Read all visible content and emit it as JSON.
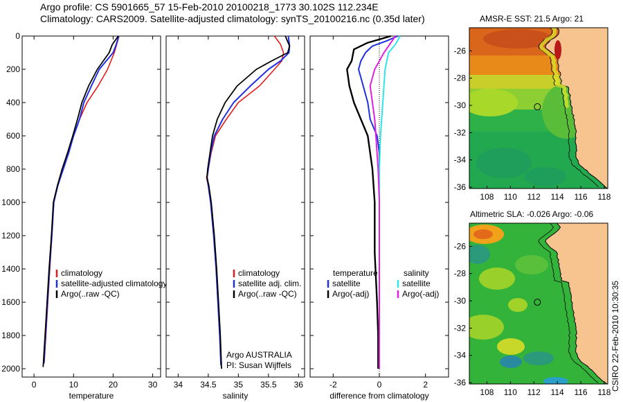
{
  "header": {
    "line1": "Argo profile: CS 5901665_57 15-Feb-2010 20100218_1773 30.102S 112.234E",
    "line2": "Climatology: CARS2009. Satellite-adjusted climatology: synTS_20100216.nc (0.35d later)"
  },
  "side_text": "CSIRO 22-Feb-2010 10:30:35",
  "colors": {
    "climatology": "#e41a1c",
    "satellite": "#1f2fe0",
    "argo": "#000000",
    "sal_satellite": "#2ee6e6",
    "sal_argo": "#e01fe0",
    "land": "#f7c48f"
  },
  "chart_data": [
    {
      "type": "line",
      "xlabel": "temperature",
      "ylabel": "",
      "xlim": [
        -3,
        32
      ],
      "ylim": [
        2050,
        0
      ],
      "xticks": [
        "0",
        "10",
        "20",
        "30"
      ],
      "yticks": [
        "0",
        "200",
        "400",
        "600",
        "800",
        "1000",
        "1200",
        "1400",
        "1600",
        "1800",
        "2000"
      ],
      "legend": [
        "climatology",
        "satellite-adjusted climatology",
        "Argo(..raw -QC)"
      ],
      "series": [
        {
          "name": "climatology",
          "points": [
            [
              21.5,
              0
            ],
            [
              20.9,
              50
            ],
            [
              20.3,
              100
            ],
            [
              18.6,
              200
            ],
            [
              16.2,
              300
            ],
            [
              13.4,
              400
            ],
            [
              11.5,
              500
            ],
            [
              10.0,
              600
            ],
            [
              8.6,
              700
            ],
            [
              7.3,
              800
            ],
            [
              6.0,
              900
            ],
            [
              5.0,
              1000
            ],
            [
              4.5,
              1200
            ],
            [
              4.0,
              1400
            ],
            [
              3.5,
              1600
            ],
            [
              3.0,
              1800
            ],
            [
              2.6,
              1960
            ]
          ]
        },
        {
          "name": "satellite-adjusted climatology",
          "points": [
            [
              21.4,
              0
            ],
            [
              20.8,
              50
            ],
            [
              20.0,
              100
            ],
            [
              16.5,
              200
            ],
            [
              14.5,
              300
            ],
            [
              12.6,
              400
            ],
            [
              11.5,
              500
            ],
            [
              10.0,
              600
            ],
            [
              8.8,
              700
            ],
            [
              7.4,
              800
            ],
            [
              6.0,
              900
            ],
            [
              5.0,
              1000
            ],
            [
              4.5,
              1200
            ],
            [
              3.9,
              1400
            ],
            [
              3.4,
              1600
            ],
            [
              2.9,
              1800
            ],
            [
              2.5,
              1970
            ]
          ]
        },
        {
          "name": "Argo(..raw -QC)",
          "points": [
            [
              21.3,
              0
            ],
            [
              19.8,
              50
            ],
            [
              19.0,
              100
            ],
            [
              16.0,
              200
            ],
            [
              13.8,
              300
            ],
            [
              12.1,
              400
            ],
            [
              11.0,
              500
            ],
            [
              9.8,
              600
            ],
            [
              8.5,
              700
            ],
            [
              7.1,
              800
            ],
            [
              5.9,
              900
            ],
            [
              4.9,
              1000
            ],
            [
              4.4,
              1200
            ],
            [
              3.8,
              1400
            ],
            [
              3.3,
              1600
            ],
            [
              2.8,
              1800
            ],
            [
              2.3,
              1990
            ]
          ]
        }
      ]
    },
    {
      "type": "line",
      "xlabel": "salinity",
      "xlim": [
        33.8,
        36.1
      ],
      "ylim": [
        2050,
        0
      ],
      "xticks": [
        "34",
        "34.5",
        "35",
        "35.5",
        "36"
      ],
      "legend": [
        "climatology",
        "satellite adj. clim.",
        "Argo(..raw -QC)"
      ],
      "annotation": [
        "Argo AUSTRALIA",
        "PI: Susan Wijffels"
      ],
      "series": [
        {
          "name": "climatology",
          "points": [
            [
              35.6,
              0
            ],
            [
              35.7,
              50
            ],
            [
              35.75,
              100
            ],
            [
              35.72,
              150
            ],
            [
              35.6,
              200
            ],
            [
              35.35,
              300
            ],
            [
              35.0,
              400
            ],
            [
              34.8,
              500
            ],
            [
              34.62,
              600
            ],
            [
              34.55,
              700
            ],
            [
              34.5,
              800
            ],
            [
              34.47,
              850
            ],
            [
              34.5,
              900
            ],
            [
              34.54,
              1000
            ],
            [
              34.59,
              1200
            ],
            [
              34.63,
              1400
            ],
            [
              34.66,
              1600
            ],
            [
              34.69,
              1800
            ],
            [
              34.72,
              1970
            ]
          ]
        },
        {
          "name": "satellite adj. clim.",
          "points": [
            [
              35.83,
              0
            ],
            [
              35.85,
              60
            ],
            [
              35.84,
              100
            ],
            [
              35.7,
              150
            ],
            [
              35.5,
              200
            ],
            [
              35.2,
              300
            ],
            [
              34.92,
              400
            ],
            [
              34.74,
              500
            ],
            [
              34.6,
              600
            ],
            [
              34.54,
              700
            ],
            [
              34.5,
              800
            ],
            [
              34.48,
              850
            ],
            [
              34.5,
              900
            ],
            [
              34.54,
              1000
            ],
            [
              34.59,
              1200
            ],
            [
              34.63,
              1400
            ],
            [
              34.66,
              1600
            ],
            [
              34.69,
              1800
            ],
            [
              34.71,
              1980
            ]
          ]
        },
        {
          "name": "Argo(..raw -QC)",
          "points": [
            [
              35.78,
              0
            ],
            [
              35.85,
              60
            ],
            [
              35.82,
              100
            ],
            [
              35.55,
              150
            ],
            [
              35.3,
              200
            ],
            [
              34.98,
              300
            ],
            [
              34.78,
              400
            ],
            [
              34.65,
              500
            ],
            [
              34.57,
              600
            ],
            [
              34.53,
              700
            ],
            [
              34.49,
              800
            ],
            [
              34.48,
              850
            ],
            [
              34.51,
              900
            ],
            [
              34.55,
              1000
            ],
            [
              34.6,
              1200
            ],
            [
              34.64,
              1400
            ],
            [
              34.67,
              1600
            ],
            [
              34.7,
              1800
            ],
            [
              34.72,
              2000
            ]
          ]
        }
      ]
    },
    {
      "type": "line",
      "xlabel": "difference from climatology",
      "xlim": [
        -3,
        3
      ],
      "ylim": [
        2050,
        0
      ],
      "xticks": [
        "-2",
        "0",
        "2"
      ],
      "legend_left": [
        "temperature",
        "satellite",
        "Argo(-adj)"
      ],
      "legend_right": [
        "salinity",
        "satellite",
        "Argo(-adj)"
      ],
      "series": [
        {
          "name": "temperature satellite",
          "points": [
            [
              0.8,
              0
            ],
            [
              0.3,
              30
            ],
            [
              -0.3,
              60
            ],
            [
              -0.6,
              100
            ],
            [
              -0.8,
              150
            ],
            [
              -0.9,
              200
            ],
            [
              -0.7,
              300
            ],
            [
              -0.5,
              400
            ],
            [
              -0.4,
              500
            ],
            [
              -0.1,
              600
            ],
            [
              0.0,
              700
            ],
            [
              0.0,
              800
            ],
            [
              0.0,
              1000
            ],
            [
              0.0,
              1400
            ],
            [
              0.0,
              1800
            ],
            [
              0.0,
              1990
            ]
          ]
        },
        {
          "name": "temperature Argo(-adj)",
          "points": [
            [
              0.5,
              0
            ],
            [
              -0.5,
              40
            ],
            [
              -1.1,
              80
            ],
            [
              -1.2,
              150
            ],
            [
              -1.4,
              200
            ],
            [
              -1.3,
              300
            ],
            [
              -1.1,
              400
            ],
            [
              -0.8,
              500
            ],
            [
              -0.5,
              600
            ],
            [
              -0.3,
              800
            ],
            [
              -0.2,
              1000
            ],
            [
              -0.2,
              1300
            ],
            [
              -0.1,
              1600
            ],
            [
              -0.05,
              1800
            ],
            [
              -0.05,
              2000
            ]
          ]
        },
        {
          "name": "salinity satellite",
          "points": [
            [
              0.9,
              0
            ],
            [
              0.7,
              50
            ],
            [
              0.4,
              100
            ],
            [
              0.25,
              200
            ],
            [
              0.15,
              400
            ],
            [
              0.05,
              600
            ],
            [
              0.0,
              800
            ],
            [
              0.0,
              1200
            ],
            [
              0.0,
              1600
            ],
            [
              0.0,
              2000
            ]
          ]
        },
        {
          "name": "salinity Argo(-adj)",
          "points": [
            [
              0.7,
              0
            ],
            [
              0.4,
              60
            ],
            [
              0.2,
              100
            ],
            [
              -0.2,
              200
            ],
            [
              -0.4,
              300
            ],
            [
              -0.3,
              400
            ],
            [
              -0.2,
              500
            ],
            [
              -0.15,
              600
            ],
            [
              -0.05,
              800
            ],
            [
              0.0,
              1000
            ],
            [
              0.0,
              1400
            ],
            [
              0.0,
              2000
            ]
          ]
        }
      ]
    },
    {
      "type": "heatmap",
      "title": "AMSR-E SST: 21.5 Argo: 21",
      "xticks": [
        "108",
        "110",
        "112",
        "114",
        "116",
        "118"
      ],
      "yticks": [
        "-26",
        "-28",
        "-30",
        "-32",
        "-34",
        "-36"
      ],
      "xlim": [
        106.5,
        118.3
      ],
      "ylim": [
        -36.1,
        -24.3
      ],
      "marker": [
        112.3,
        -30.1
      ]
    },
    {
      "type": "heatmap",
      "title": "Altimetric SLA: -0.026 Argo: -0.06",
      "xticks": [
        "108",
        "110",
        "112",
        "114",
        "116",
        "118"
      ],
      "yticks": [
        "-26",
        "-28",
        "-30",
        "-32",
        "-34",
        "-36"
      ],
      "xlim": [
        106.5,
        118.3
      ],
      "ylim": [
        -36.1,
        -24.3
      ],
      "marker": [
        112.3,
        -30.1
      ]
    }
  ]
}
